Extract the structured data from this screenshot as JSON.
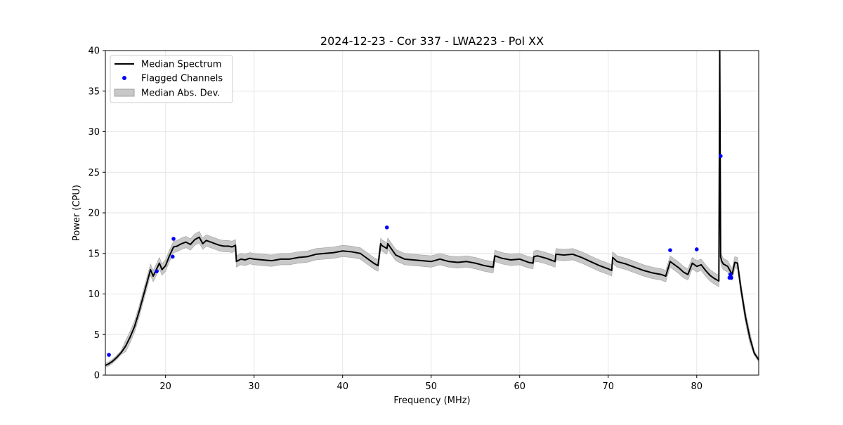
{
  "chart_data": {
    "type": "line",
    "title": "2024-12-23 - Cor 337 - LWA223 - Pol XX",
    "xlabel": "Frequency (MHz)",
    "ylabel": "Power (CPU)",
    "xlim": [
      13.2,
      87.0
    ],
    "ylim": [
      0,
      40
    ],
    "xticks": [
      20,
      30,
      40,
      50,
      60,
      70,
      80
    ],
    "yticks": [
      0,
      5,
      10,
      15,
      20,
      25,
      30,
      35,
      40
    ],
    "grid": true,
    "legend_position": "top-left",
    "colors": {
      "median": "#000000",
      "flagged": "#0000ff",
      "mad": "#c8c8c8",
      "mad_edge": "#a0a0a0",
      "grid": "#e6e6e6"
    },
    "series": [
      {
        "name": "Median Spectrum",
        "kind": "line",
        "x": [
          13.2,
          13.6,
          14.0,
          14.5,
          15.0,
          15.5,
          16.0,
          16.5,
          17.0,
          17.5,
          18.0,
          18.3,
          18.6,
          19.0,
          19.3,
          19.6,
          20.0,
          20.4,
          20.9,
          21.3,
          21.8,
          22.3,
          22.8,
          23.3,
          23.8,
          24.2,
          24.6,
          25.1,
          25.6,
          26.1,
          26.6,
          27.1,
          27.5,
          27.9,
          28.0,
          28.5,
          29.0,
          29.5,
          30.0,
          31.0,
          32.0,
          33.0,
          34.0,
          35.0,
          36.0,
          37.0,
          38.0,
          39.0,
          40.0,
          41.0,
          42.0,
          42.5,
          43.0,
          43.5,
          44.0,
          44.3,
          44.4,
          45.0,
          45.1,
          46.0,
          47.0,
          48.0,
          49.0,
          50.0,
          51.0,
          52.0,
          53.0,
          54.0,
          55.0,
          56.0,
          57.0,
          57.2,
          58.0,
          59.0,
          60.0,
          61.0,
          61.5,
          61.6,
          62.0,
          63.0,
          64.0,
          64.1,
          65.0,
          66.0,
          67.0,
          68.0,
          69.0,
          70.0,
          70.4,
          70.5,
          71.0,
          72.0,
          73.0,
          74.0,
          75.0,
          76.0,
          76.5,
          77.0,
          77.5,
          78.0,
          78.5,
          79.0,
          79.5,
          80.0,
          80.5,
          81.0,
          81.5,
          82.0,
          82.5,
          82.6,
          82.7,
          82.8,
          83.0,
          83.5,
          83.7,
          84.0,
          84.3,
          84.6,
          85.0,
          85.5,
          86.0,
          86.5,
          87.0
        ],
        "y": [
          1.2,
          1.4,
          1.7,
          2.2,
          2.8,
          3.6,
          4.7,
          6.0,
          7.8,
          9.8,
          11.8,
          13.0,
          12.2,
          13.1,
          13.8,
          13.0,
          13.5,
          14.6,
          15.8,
          15.9,
          16.2,
          16.4,
          16.1,
          16.7,
          17.0,
          16.2,
          16.6,
          16.4,
          16.2,
          16.0,
          15.9,
          15.9,
          15.8,
          16.0,
          14.0,
          14.3,
          14.2,
          14.4,
          14.3,
          14.2,
          14.1,
          14.3,
          14.3,
          14.5,
          14.6,
          14.9,
          15.0,
          15.1,
          15.3,
          15.2,
          15.0,
          14.6,
          14.2,
          13.8,
          13.5,
          16.2,
          16.0,
          15.6,
          16.2,
          14.8,
          14.3,
          14.2,
          14.1,
          14.0,
          14.3,
          14.0,
          13.9,
          14.0,
          13.8,
          13.5,
          13.3,
          14.7,
          14.4,
          14.2,
          14.3,
          13.9,
          13.8,
          14.6,
          14.7,
          14.4,
          14.0,
          14.9,
          14.8,
          14.9,
          14.5,
          14.0,
          13.5,
          13.1,
          12.9,
          14.5,
          14.0,
          13.7,
          13.3,
          12.9,
          12.6,
          12.4,
          12.2,
          14.0,
          13.6,
          13.2,
          12.7,
          12.4,
          13.8,
          13.4,
          13.6,
          12.9,
          12.3,
          11.9,
          11.6,
          40.0,
          14.6,
          14.1,
          13.7,
          13.4,
          13.0,
          12.4,
          13.9,
          13.8,
          10.6,
          7.2,
          4.6,
          2.7,
          1.9
        ]
      },
      {
        "name": "Flagged Channels",
        "kind": "scatter",
        "x": [
          13.6,
          19.0,
          20.8,
          20.9,
          45.0,
          77.0,
          80.0,
          82.7,
          83.7,
          83.8,
          83.9
        ],
        "y": [
          2.5,
          12.8,
          14.6,
          16.8,
          18.2,
          15.4,
          15.5,
          27.0,
          12.0,
          12.4,
          12.0
        ]
      },
      {
        "name": "Median Abs. Dev.",
        "kind": "band",
        "halfwidth": 0.7
      }
    ]
  }
}
